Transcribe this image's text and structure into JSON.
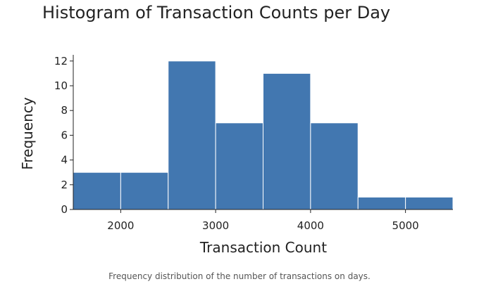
{
  "chart_data": {
    "type": "bar",
    "title": "Histogram of Transaction Counts per Day",
    "xlabel": "Transaction Count",
    "ylabel": "Frequency",
    "caption": "Frequency distribution of the number of transactions on days.",
    "bins": [
      {
        "start": 1500,
        "end": 2000,
        "count": 3
      },
      {
        "start": 2000,
        "end": 2500,
        "count": 3
      },
      {
        "start": 2500,
        "end": 3000,
        "count": 12
      },
      {
        "start": 3000,
        "end": 3500,
        "count": 7
      },
      {
        "start": 3500,
        "end": 4000,
        "count": 11
      },
      {
        "start": 4000,
        "end": 4500,
        "count": 7
      },
      {
        "start": 4500,
        "end": 5000,
        "count": 1
      },
      {
        "start": 5000,
        "end": 5500,
        "count": 1
      }
    ],
    "xlim": [
      1500,
      5500
    ],
    "ylim": [
      0,
      12.5
    ],
    "xticks": [
      "2000",
      "3000",
      "4000",
      "5000"
    ],
    "yticks": [
      "0",
      "2",
      "4",
      "6",
      "8",
      "10",
      "12"
    ],
    "bar_color": "#4277b0",
    "grid": false,
    "legend": false
  }
}
